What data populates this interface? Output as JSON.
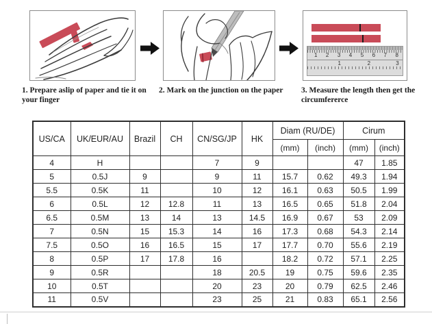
{
  "colors": {
    "accent_red": "#c94b58",
    "table_border": "#2d2d2d",
    "ruler_gray": "#dcdcdc"
  },
  "steps": [
    {
      "caption": "1. Prepare aslip of paper and tie it on your finger",
      "illustration": "hand-with-paper-slip-and-red-band"
    },
    {
      "caption": "2. Mark on the junction on the paper",
      "illustration": "pen-marking-paper-on-finger"
    },
    {
      "caption": "3. Measure the length then get the circumfererce",
      "illustration": "marked-strips-above-ruler",
      "ruler": {
        "cm_numbers": [
          "1",
          "2",
          "3",
          "4",
          "5",
          "6",
          "7",
          "8"
        ],
        "inch_numbers": [
          "1",
          "2",
          "3"
        ]
      }
    }
  ],
  "table": {
    "headers": {
      "us_ca": "US/CA",
      "uk_eur_au": "UK/EUR/AU",
      "brazil": "Brazil",
      "ch": "CH",
      "cn_sg_jp": "CN/SG/JP",
      "hk": "HK",
      "diam_group": "Diam (RU/DE)",
      "cirum_group": "Cirum",
      "diam_mm": "(mm)",
      "diam_inch": "(inch)",
      "cirum_mm": "(mm)",
      "cirum_inch": "(inch)"
    },
    "rows": [
      [
        "4",
        "H",
        "",
        "",
        "7",
        "9",
        "",
        "",
        "47",
        "1.85"
      ],
      [
        "5",
        "0.5J",
        "9",
        "",
        "9",
        "11",
        "15.7",
        "0.62",
        "49.3",
        "1.94"
      ],
      [
        "5.5",
        "0.5K",
        "11",
        "",
        "10",
        "12",
        "16.1",
        "0.63",
        "50.5",
        "1.99"
      ],
      [
        "6",
        "0.5L",
        "12",
        "12.8",
        "11",
        "13",
        "16.5",
        "0.65",
        "51.8",
        "2.04"
      ],
      [
        "6.5",
        "0.5M",
        "13",
        "14",
        "13",
        "14.5",
        "16.9",
        "0.67",
        "53",
        "2.09"
      ],
      [
        "7",
        "0.5N",
        "15",
        "15.3",
        "14",
        "16",
        "17.3",
        "0.68",
        "54.3",
        "2.14"
      ],
      [
        "7.5",
        "0.5O",
        "16",
        "16.5",
        "15",
        "17",
        "17.7",
        "0.70",
        "55.6",
        "2.19"
      ],
      [
        "8",
        "0.5P",
        "17",
        "17.8",
        "16",
        "",
        "18.2",
        "0.72",
        "57.1",
        "2.25"
      ],
      [
        "9",
        "0.5R",
        "",
        "",
        "18",
        "20.5",
        "19",
        "0.75",
        "59.6",
        "2.35"
      ],
      [
        "10",
        "0.5T",
        "",
        "",
        "20",
        "23",
        "20",
        "0.79",
        "62.5",
        "2.46"
      ],
      [
        "11",
        "0.5V",
        "",
        "",
        "23",
        "25",
        "21",
        "0.83",
        "65.1",
        "2.56"
      ]
    ]
  }
}
